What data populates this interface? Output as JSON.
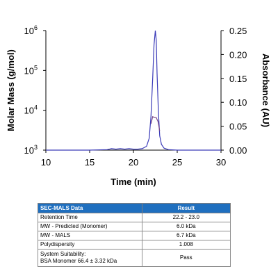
{
  "chart_data": {
    "type": "line",
    "xlabel": "Time (min)",
    "ylabel_left": "Molar Mass (g/mol)",
    "ylabel_right": "Absorbance (AU)",
    "xlim": [
      10,
      30
    ],
    "x_ticks": [
      "10",
      "15",
      "20",
      "25",
      "30"
    ],
    "y_left_scale": "log",
    "y_left_lim": [
      1000,
      1000000
    ],
    "y_left_ticks": [
      {
        "base": "10",
        "exp": "3"
      },
      {
        "base": "10",
        "exp": "4"
      },
      {
        "base": "10",
        "exp": "5"
      },
      {
        "base": "10",
        "exp": "6"
      }
    ],
    "y_right_lim": [
      0,
      0.25
    ],
    "y_right_ticks": [
      "0.00",
      "0.05",
      "0.10",
      "0.15",
      "0.20",
      "0.25"
    ],
    "grid": false,
    "series": [
      {
        "axis": "right",
        "color": "#3a3ab8",
        "x": [
          10,
          15,
          17,
          17.5,
          18,
          18.5,
          19,
          19.5,
          20,
          20.5,
          21,
          21.5,
          21.8,
          22.0,
          22.2,
          22.35,
          22.5,
          22.6,
          22.7,
          22.85,
          23.0,
          23.2,
          23.5,
          24,
          25,
          30
        ],
        "y": [
          0.0,
          0.0,
          0.001,
          0.003,
          0.002,
          0.003,
          0.002,
          0.003,
          0.002,
          0.002,
          0.003,
          0.008,
          0.025,
          0.07,
          0.15,
          0.22,
          0.25,
          0.23,
          0.16,
          0.08,
          0.03,
          0.012,
          0.004,
          0.001,
          0.0,
          0.0
        ]
      },
      {
        "axis": "right",
        "color": "#7a4a8a",
        "x": [
          22.0,
          22.2,
          22.4,
          22.6,
          22.8,
          23.0
        ],
        "y": [
          0.055,
          0.07,
          0.068,
          0.068,
          0.06,
          0.04
        ]
      }
    ]
  },
  "table": {
    "headers": [
      "SEC-MALS Data",
      "Result"
    ],
    "rows": [
      {
        "label": [
          "Retention Time"
        ],
        "value": "22.2 - 23.0"
      },
      {
        "label": [
          "MW - Predicted (Monomer)"
        ],
        "value": "6.0 kDa"
      },
      {
        "label": [
          "MW - MALS"
        ],
        "value": "6.7 kDa"
      },
      {
        "label": [
          "Polydispersity"
        ],
        "value": "1.008"
      },
      {
        "label": [
          "System Suitability:",
          "BSA Monomer 66.4 ± 3.32 kDa"
        ],
        "value": "Pass"
      }
    ]
  }
}
